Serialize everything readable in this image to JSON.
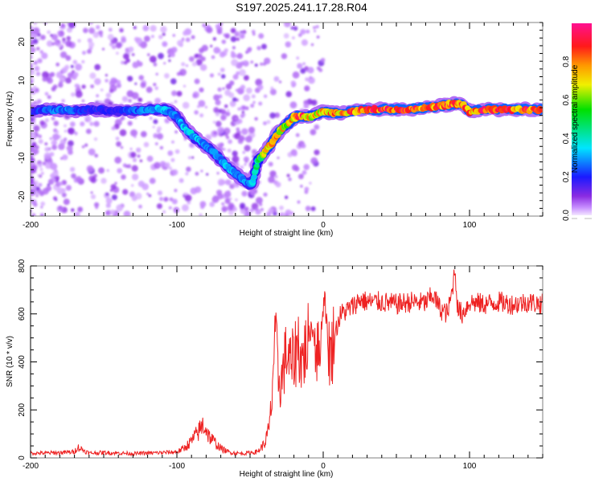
{
  "title": "S197.2025.241.17.28.R04",
  "chart_data": [
    {
      "type": "heatmap",
      "name": "spectrogram",
      "title": "",
      "xlabel": "Height of straight line (km)",
      "ylabel": "Frequency (Hz)",
      "xlim": [
        -200,
        150
      ],
      "ylim": [
        -25,
        25
      ],
      "xticks": [
        -200,
        -100,
        0,
        100
      ],
      "yticks": [
        -20,
        -10,
        0,
        10,
        20
      ],
      "colorbar": {
        "label": "Normalized spectral amplitude",
        "range": [
          0,
          1
        ],
        "ticks": [
          "0.0",
          "0.2",
          "0.4",
          "0.6",
          "0.8"
        ],
        "colors": [
          "#f0e0ff",
          "#9b30ff",
          "#2020ff",
          "#00e0ff",
          "#00e000",
          "#f0f000",
          "#ff8000",
          "#ff1010",
          "#ff1090"
        ]
      },
      "ridge": {
        "x": [
          -200,
          -190,
          -180,
          -170,
          -160,
          -150,
          -140,
          -130,
          -120,
          -110,
          -105,
          -100,
          -95,
          -90,
          -85,
          -80,
          -75,
          -70,
          -65,
          -60,
          -55,
          -50,
          -48,
          -45,
          -40,
          -35,
          -30,
          -25,
          -20,
          -15,
          -10,
          -5,
          0,
          5,
          10,
          20,
          30,
          40,
          50,
          60,
          70,
          80,
          85,
          90,
          95,
          100,
          110,
          120,
          130,
          140,
          150
        ],
        "freq": [
          2,
          2.5,
          2.5,
          2.3,
          2.5,
          2.3,
          2.2,
          2.2,
          2.5,
          2.6,
          2.0,
          0.5,
          -2,
          -4,
          -5.5,
          -7,
          -8.5,
          -10.5,
          -12.5,
          -14,
          -15.5,
          -17,
          -16,
          -11,
          -8.5,
          -6,
          -3,
          -1.5,
          0.5,
          0.8,
          0.5,
          1.2,
          2.0,
          1.8,
          1.5,
          2.0,
          2.5,
          2.5,
          2.5,
          2.6,
          3.0,
          3.5,
          3.8,
          4.0,
          3.8,
          2.0,
          2.5,
          2.5,
          2.5,
          2.5,
          2.5
        ],
        "amplitude": [
          0.2,
          0.25,
          0.3,
          0.25,
          0.2,
          0.2,
          0.2,
          0.25,
          0.3,
          0.35,
          0.3,
          0.3,
          0.35,
          0.35,
          0.35,
          0.3,
          0.3,
          0.3,
          0.35,
          0.3,
          0.3,
          0.3,
          0.35,
          0.5,
          0.7,
          0.75,
          0.8,
          0.7,
          0.85,
          0.9,
          0.75,
          0.75,
          0.8,
          0.85,
          0.85,
          0.85,
          0.9,
          0.9,
          0.9,
          0.9,
          0.9,
          0.9,
          0.9,
          0.9,
          0.85,
          0.85,
          0.9,
          0.9,
          0.9,
          0.9,
          0.9
        ]
      }
    },
    {
      "type": "line",
      "name": "snr",
      "title": "",
      "xlabel": "Height of straight line (km)",
      "ylabel": "SNR (10 * v/v)",
      "xlim": [
        -200,
        150
      ],
      "ylim": [
        0,
        800
      ],
      "xticks": [
        -200,
        -100,
        0,
        100
      ],
      "yticks": [
        0,
        200,
        400,
        600,
        800
      ],
      "color": "#ee2222",
      "series": [
        {
          "name": "SNR",
          "x": [
            -200,
            -190,
            -180,
            -170,
            -168,
            -160,
            -150,
            -140,
            -130,
            -120,
            -110,
            -100,
            -95,
            -90,
            -85,
            -82,
            -80,
            -78,
            -75,
            -70,
            -65,
            -60,
            -55,
            -50,
            -45,
            -40,
            -37,
            -35,
            -33,
            -31,
            -29,
            -27,
            -25,
            -22,
            -20,
            -17,
            -15,
            -12,
            -10,
            -8,
            -5,
            -3,
            -1,
            1,
            3,
            5,
            8,
            10,
            12,
            15,
            20,
            25,
            30,
            40,
            50,
            60,
            70,
            75,
            80,
            85,
            88,
            90,
            92,
            95,
            100,
            110,
            120,
            130,
            140,
            150
          ],
          "y": [
            20,
            20,
            22,
            25,
            45,
            20,
            22,
            20,
            18,
            20,
            22,
            25,
            40,
            70,
            110,
            140,
            120,
            90,
            70,
            40,
            25,
            20,
            18,
            22,
            25,
            60,
            120,
            250,
            550,
            350,
            300,
            380,
            440,
            380,
            420,
            480,
            400,
            450,
            500,
            550,
            480,
            420,
            560,
            690,
            500,
            420,
            520,
            560,
            600,
            610,
            630,
            660,
            650,
            650,
            640,
            650,
            645,
            680,
            620,
            600,
            690,
            790,
            620,
            600,
            650,
            640,
            650,
            640,
            650,
            640
          ]
        }
      ]
    }
  ]
}
